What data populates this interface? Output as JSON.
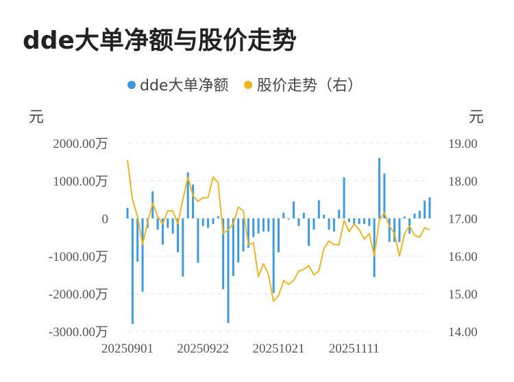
{
  "title": "dde大单净额与股价走势",
  "colors": {
    "bar": "#3a9be0",
    "line": "#f0b323",
    "grid": "#e6e6e6"
  },
  "chart_data": {
    "type": "bar+line",
    "left_unit": "元",
    "right_unit": "元",
    "legend": [
      "dde大单净额",
      "股价走势（右）"
    ],
    "legend_position": "top-center",
    "grid": true,
    "left_axis": {
      "ylim": [
        -3000,
        2000
      ],
      "ticks": [
        2000,
        1000,
        0,
        -1000,
        -2000,
        -3000
      ],
      "tick_labels": [
        "2000.00万",
        "1000.00万",
        "0",
        "-1000.00万",
        "-2000.00万",
        "-3000.00万"
      ]
    },
    "right_axis": {
      "ylim": [
        14,
        19
      ],
      "ticks": [
        19,
        18,
        17,
        16,
        15,
        14
      ],
      "tick_labels": [
        "19.00",
        "18.00",
        "17.00",
        "16.00",
        "15.00",
        "14.00"
      ]
    },
    "x_tick_labels": [
      "20250901",
      "20250922",
      "20251021",
      "20251111"
    ],
    "x_tick_index": [
      0,
      15,
      30,
      45
    ],
    "bar_values": [
      280,
      -2800,
      -1150,
      -1950,
      -250,
      720,
      -300,
      -700,
      -250,
      -400,
      -900,
      -1550,
      1220,
      900,
      -1180,
      -200,
      -250,
      -150,
      60,
      -1880,
      -2780,
      -1530,
      -1170,
      -880,
      -780,
      -500,
      -400,
      -350,
      -350,
      -1980,
      -900,
      150,
      -30,
      450,
      -200,
      150,
      -730,
      -300,
      480,
      100,
      -300,
      -350,
      230,
      1090,
      -100,
      -150,
      -150,
      -150,
      -200,
      -1560,
      1600,
      1190,
      -620,
      -620,
      -630,
      50,
      -400,
      130,
      200,
      470,
      560
    ],
    "line_values": [
      18.55,
      17.5,
      17.05,
      16.3,
      16.9,
      17.4,
      17.05,
      16.85,
      17.2,
      17.2,
      16.85,
      17.5,
      18.1,
      17.6,
      17.45,
      17.55,
      17.55,
      18.1,
      17.95,
      16.6,
      16.7,
      16.85,
      17.3,
      17.2,
      16.3,
      16.35,
      15.45,
      15.8,
      15.5,
      14.8,
      14.95,
      15.35,
      15.25,
      15.35,
      15.6,
      15.65,
      15.75,
      15.5,
      15.6,
      16.2,
      16.4,
      16.3,
      16.3,
      16.95,
      16.65,
      16.85,
      16.7,
      16.45,
      16.6,
      16.0,
      16.95,
      17.15,
      16.8,
      16.6,
      16.0,
      16.6,
      16.8,
      16.55,
      16.5,
      16.75,
      16.7
    ]
  }
}
